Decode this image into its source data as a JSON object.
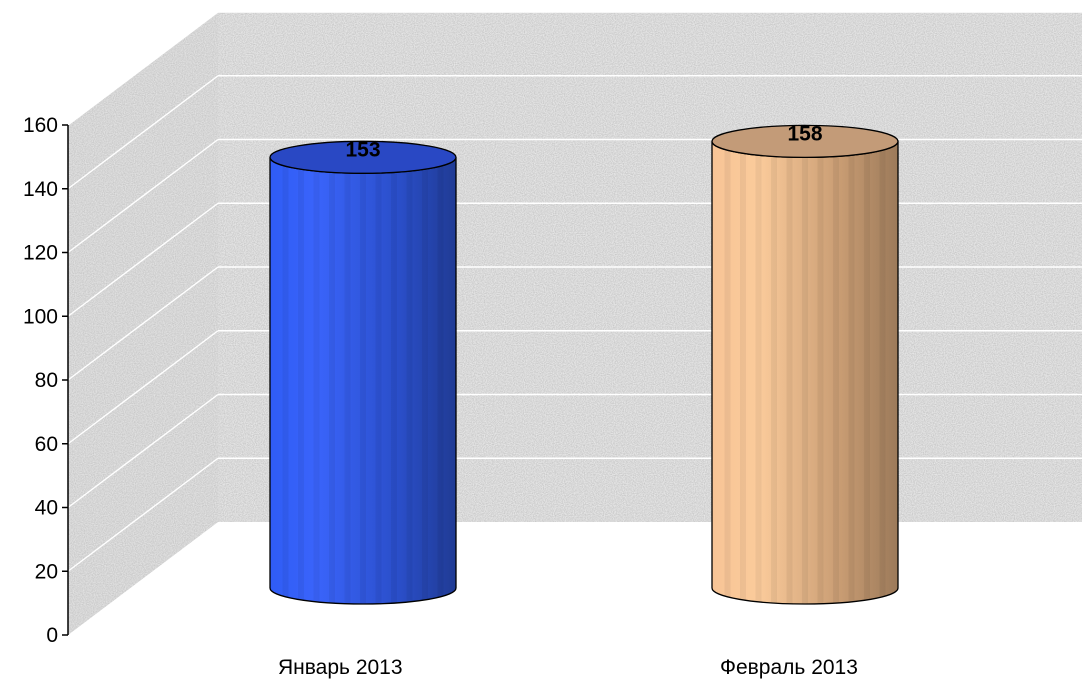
{
  "chart_data": {
    "type": "bar",
    "style": "3d-cylinder",
    "title": "",
    "xlabel": "",
    "ylabel": "",
    "categories": [
      "Январь 2013",
      "Февраль 2013"
    ],
    "values": [
      153,
      158
    ],
    "ylim": [
      0,
      160
    ],
    "yticks": [
      0,
      20,
      40,
      60,
      80,
      100,
      120,
      140,
      160
    ],
    "grid": true,
    "legend": "none",
    "data_labels": true,
    "colors": [
      "#2a55e8",
      "#e8b488"
    ],
    "background": "textured-gray"
  }
}
